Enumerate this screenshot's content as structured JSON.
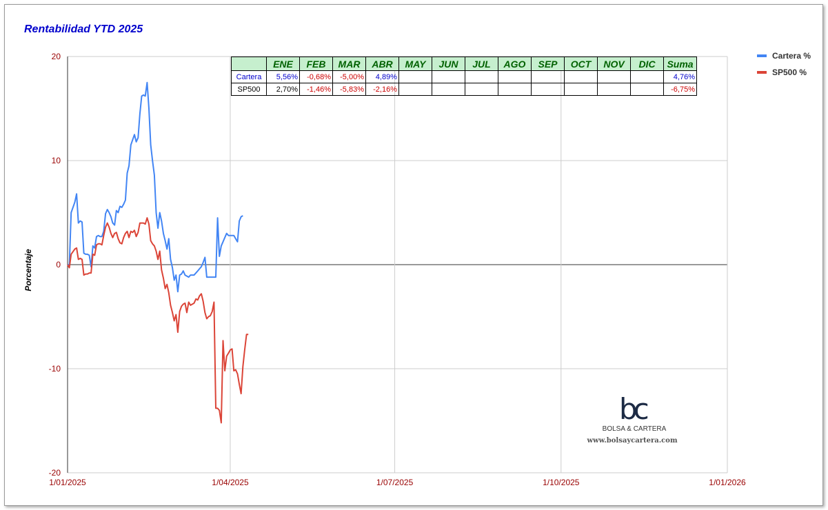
{
  "chart_data": {
    "type": "line",
    "title": "Rentabilidad YTD 2025",
    "xlabel": "",
    "ylabel": "Porcentaje",
    "ylim": [
      -20,
      20
    ],
    "yticks": [
      "20",
      "10",
      "0",
      "-10",
      "-20"
    ],
    "ytick_values": [
      20,
      10,
      0,
      -10,
      -20
    ],
    "xticks": [
      "1/01/2025",
      "1/04/2025",
      "1/07/2025",
      "1/10/2025",
      "1/01/2026"
    ],
    "xtick_days": [
      0,
      90,
      181,
      273,
      365
    ],
    "legend_position": "right",
    "series": [
      {
        "name": "Cartera %",
        "color": "#4285f4",
        "points": [
          [
            0,
            0
          ],
          [
            1,
            0
          ],
          [
            2,
            5
          ],
          [
            4,
            6
          ],
          [
            5,
            6.8
          ],
          [
            6,
            4
          ],
          [
            7,
            4.2
          ],
          [
            8,
            4.1
          ],
          [
            9,
            1.1
          ],
          [
            10,
            1
          ],
          [
            11,
            1
          ],
          [
            12,
            0.9
          ],
          [
            13,
            -0.2
          ],
          [
            14,
            1.8
          ],
          [
            15,
            1.6
          ],
          [
            16,
            2.7
          ],
          [
            17,
            2.8
          ],
          [
            18,
            2.7
          ],
          [
            19,
            2.7
          ],
          [
            20,
            3.2
          ],
          [
            21,
            4.9
          ],
          [
            22,
            5.3
          ],
          [
            23,
            5
          ],
          [
            24,
            4.6
          ],
          [
            25,
            4
          ],
          [
            26,
            3.8
          ],
          [
            27,
            5.2
          ],
          [
            28,
            5
          ],
          [
            29,
            5.6
          ],
          [
            30,
            5.5
          ],
          [
            31,
            5.8
          ],
          [
            32,
            6.2
          ],
          [
            33,
            8.8
          ],
          [
            34,
            9.5
          ],
          [
            35,
            11.5
          ],
          [
            36,
            12
          ],
          [
            37,
            12.5
          ],
          [
            38,
            11.8
          ],
          [
            39,
            12.2
          ],
          [
            40,
            14.5
          ],
          [
            41,
            16.2
          ],
          [
            42,
            16.3
          ],
          [
            43,
            16.2
          ],
          [
            44,
            17.5
          ],
          [
            45,
            15
          ],
          [
            46,
            11.5
          ],
          [
            47,
            10
          ],
          [
            48,
            8.6
          ],
          [
            49,
            5
          ],
          [
            50,
            3.5
          ],
          [
            51,
            5
          ],
          [
            52,
            4.2
          ],
          [
            53,
            3
          ],
          [
            54,
            2.3
          ],
          [
            55,
            1.5
          ],
          [
            56,
            2.5
          ],
          [
            57,
            0.5
          ],
          [
            58,
            -0.3
          ],
          [
            59,
            -1.5
          ],
          [
            60,
            -1
          ],
          [
            61,
            -2.6
          ],
          [
            62,
            -1
          ],
          [
            63,
            -0.9
          ],
          [
            64,
            -0.6
          ],
          [
            65,
            -1
          ],
          [
            66,
            -1.1
          ],
          [
            67,
            -1.2
          ],
          [
            68,
            -1
          ],
          [
            69,
            -1
          ],
          [
            70,
            -1
          ],
          [
            71,
            -0.8
          ],
          [
            72,
            -0.6
          ],
          [
            73,
            -0.4
          ],
          [
            74,
            -0.2
          ],
          [
            75,
            0.2
          ],
          [
            76,
            0.7
          ],
          [
            77,
            -1.2
          ],
          [
            78,
            -1.2
          ],
          [
            79,
            -1.2
          ],
          [
            80,
            -1.2
          ],
          [
            81,
            -1.2
          ],
          [
            82,
            -1.2
          ],
          [
            83,
            4.5
          ],
          [
            84,
            0.8
          ],
          [
            85,
            1.8
          ],
          [
            86,
            2.2
          ],
          [
            87,
            2.6
          ],
          [
            88,
            3
          ],
          [
            89,
            2.8
          ],
          [
            90,
            2.8
          ],
          [
            91,
            2.8
          ],
          [
            92,
            2.8
          ],
          [
            93,
            2.5
          ],
          [
            94,
            2.2
          ],
          [
            95,
            4.2
          ],
          [
            96,
            4.6
          ],
          [
            97,
            4.7
          ]
        ]
      },
      {
        "name": "SP500 %",
        "color": "#db4437",
        "points": [
          [
            0,
            0
          ],
          [
            1,
            -0.3
          ],
          [
            2,
            1
          ],
          [
            4,
            1.5
          ],
          [
            5,
            1.6
          ],
          [
            6,
            0.5
          ],
          [
            7,
            0.6
          ],
          [
            8,
            0.5
          ],
          [
            9,
            -1
          ],
          [
            10,
            -0.9
          ],
          [
            11,
            -0.9
          ],
          [
            12,
            -0.8
          ],
          [
            13,
            -0.8
          ],
          [
            14,
            1
          ],
          [
            15,
            0.9
          ],
          [
            16,
            1.9
          ],
          [
            17,
            2
          ],
          [
            18,
            2
          ],
          [
            19,
            1.9
          ],
          [
            20,
            2.8
          ],
          [
            21,
            3.6
          ],
          [
            22,
            4
          ],
          [
            23,
            3.6
          ],
          [
            24,
            3
          ],
          [
            25,
            2.6
          ],
          [
            26,
            3
          ],
          [
            27,
            3.1
          ],
          [
            28,
            2.5
          ],
          [
            29,
            2.1
          ],
          [
            30,
            2
          ],
          [
            31,
            2.6
          ],
          [
            32,
            3
          ],
          [
            33,
            3.2
          ],
          [
            34,
            2.6
          ],
          [
            35,
            3.2
          ],
          [
            36,
            3.1
          ],
          [
            37,
            3.3
          ],
          [
            38,
            2.7
          ],
          [
            39,
            3.1
          ],
          [
            40,
            4
          ],
          [
            41,
            4
          ],
          [
            42,
            4
          ],
          [
            43,
            3.9
          ],
          [
            44,
            4.5
          ],
          [
            45,
            3.9
          ],
          [
            46,
            2.3
          ],
          [
            47,
            2
          ],
          [
            48,
            1.8
          ],
          [
            49,
            1.3
          ],
          [
            50,
            0.5
          ],
          [
            51,
            1.3
          ],
          [
            52,
            -0.5
          ],
          [
            53,
            -1.3
          ],
          [
            54,
            -2.3
          ],
          [
            55,
            -1.9
          ],
          [
            56,
            -2.7
          ],
          [
            57,
            -3.9
          ],
          [
            58,
            -4.6
          ],
          [
            59,
            -5.4
          ],
          [
            60,
            -4.8
          ],
          [
            61,
            -6.5
          ],
          [
            62,
            -4.5
          ],
          [
            63,
            -4
          ],
          [
            64,
            -3.8
          ],
          [
            65,
            -3.7
          ],
          [
            66,
            -4.6
          ],
          [
            67,
            -3.6
          ],
          [
            68,
            -3.9
          ],
          [
            69,
            -3.8
          ],
          [
            70,
            -3.7
          ],
          [
            71,
            -3.3
          ],
          [
            72,
            -3.4
          ],
          [
            73,
            -3
          ],
          [
            74,
            -2.8
          ],
          [
            75,
            -3.5
          ],
          [
            76,
            -4.6
          ],
          [
            77,
            -5.2
          ],
          [
            78,
            -5
          ],
          [
            79,
            -4.9
          ],
          [
            80,
            -4.5
          ],
          [
            81,
            -3.6
          ],
          [
            82,
            -13.8
          ],
          [
            83,
            -13.8
          ],
          [
            84,
            -14
          ],
          [
            85,
            -15.2
          ],
          [
            86,
            -7.3
          ],
          [
            87,
            -10.2
          ],
          [
            88,
            -8.8
          ],
          [
            89,
            -8.5
          ],
          [
            90,
            -8.2
          ],
          [
            91,
            -8.1
          ],
          [
            92,
            -10.2
          ],
          [
            93,
            -10.1
          ],
          [
            94,
            -10.5
          ],
          [
            95,
            -11.5
          ],
          [
            96,
            -12.4
          ],
          [
            97,
            -9.8
          ],
          [
            98,
            -8.2
          ],
          [
            99,
            -6.7
          ],
          [
            100,
            -6.7
          ]
        ]
      }
    ]
  },
  "table": {
    "headers": [
      "ENE",
      "FEB",
      "MAR",
      "ABR",
      "MAY",
      "JUN",
      "JUL",
      "AGO",
      "SEP",
      "OCT",
      "NOV",
      "DIC",
      "Suma"
    ],
    "rows": [
      {
        "label": "Cartera",
        "values": [
          "5,56%",
          "-0,68%",
          "-5,00%",
          "4,89%",
          "",
          "",
          "",
          "",
          "",
          "",
          "",
          "",
          "4,76%"
        ]
      },
      {
        "label": "SP500",
        "values": [
          "2,70%",
          "-1,46%",
          "-5,83%",
          "-2,16%",
          "",
          "",
          "",
          "",
          "",
          "",
          "",
          "",
          "-6,75%"
        ]
      }
    ]
  },
  "watermark": {
    "logo": "bc",
    "name": "BOLSA & CARTERA",
    "url": "www.bolsaycartera.com"
  },
  "colors": {
    "title": "#0000cc",
    "axis_labels": "#990000",
    "grid": "#cccccc",
    "table_header_bg": "#c6efce",
    "table_header_text": "#006100"
  }
}
